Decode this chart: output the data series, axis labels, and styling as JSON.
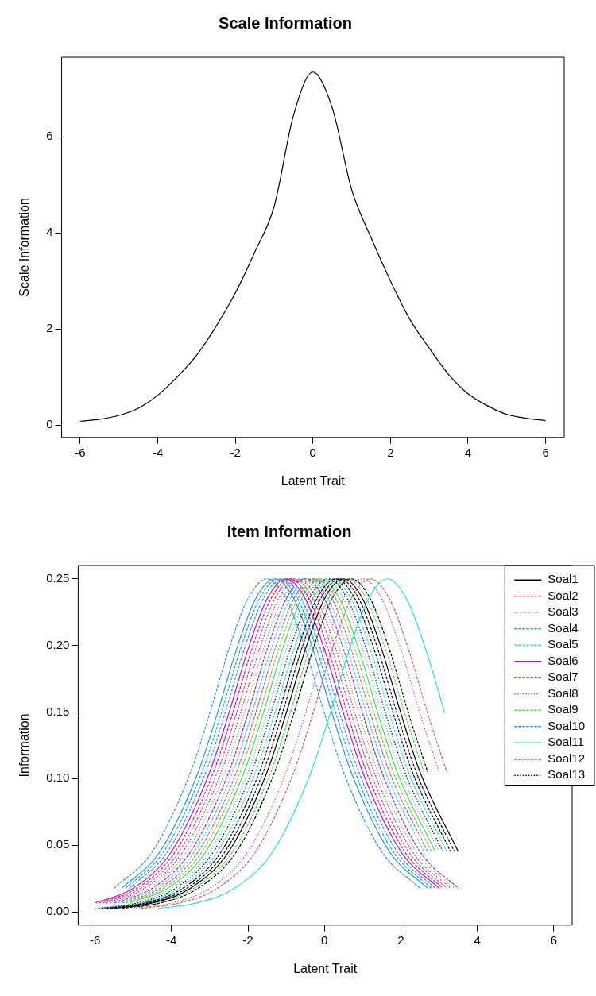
{
  "chart_data": [
    {
      "type": "line",
      "title": "Scale Information",
      "xlabel": "Latent Trait",
      "ylabel": "Scale Information",
      "xlim": [
        -6.48,
        6.48
      ],
      "ylim": [
        -0.26,
        7.66
      ],
      "xticks": [
        -6,
        -4,
        -2,
        0,
        2,
        4,
        6
      ],
      "yticks": [
        0,
        2,
        4,
        6
      ],
      "series": [
        {
          "color": "#000000",
          "line_style": "solid",
          "x": [
            -6,
            -5.5,
            -5,
            -4.5,
            -4,
            -3.5,
            -3,
            -2.5,
            -2,
            -1.5,
            -1,
            -0.5,
            0,
            0.5,
            1,
            1.5,
            2,
            2.5,
            3,
            3.5,
            4,
            4.5,
            5,
            5.5,
            6
          ],
          "values": [
            0.08,
            0.12,
            0.2,
            0.35,
            0.62,
            1.0,
            1.45,
            2.05,
            2.75,
            3.6,
            4.55,
            6.45,
            7.35,
            6.6,
            4.9,
            3.9,
            3.0,
            2.2,
            1.6,
            1.05,
            0.65,
            0.4,
            0.22,
            0.14,
            0.09
          ]
        }
      ]
    },
    {
      "type": "line",
      "title": "Item Information",
      "xlabel": "Latent Trait",
      "ylabel": "Information",
      "xlim": [
        -6.44,
        6.48
      ],
      "ylim": [
        -0.01,
        0.26
      ],
      "xticks": [
        -6,
        -4,
        -2,
        0,
        2,
        4,
        6
      ],
      "yticks": [
        {
          "value": 0,
          "label": "0.00"
        },
        {
          "value": 0.05,
          "label": "0.05"
        },
        {
          "value": 0.1,
          "label": "0.10"
        },
        {
          "value": 0.15,
          "label": "0.15"
        },
        {
          "value": 0.2,
          "label": "0.20"
        },
        {
          "value": 0.25,
          "label": "0.25"
        }
      ],
      "legend": "right",
      "series": [
        {
          "name": "Soal1",
          "color": "#000000",
          "line_style": "solid",
          "x": [
            -5.5,
            -4.5,
            -3.5,
            -2.5,
            -1.5,
            -1,
            -0.5,
            0,
            0.5,
            1,
            1.5,
            2,
            2.5,
            3.5
          ],
          "values": [
            0.0025,
            0.0066,
            0.0177,
            0.0452,
            0.105,
            0.149,
            0.197,
            0.235,
            0.25,
            0.235,
            0.197,
            0.149,
            0.105,
            0.0452
          ]
        },
        {
          "name": "Soal2",
          "color": "#df536b",
          "line_style": "dashed",
          "x": [
            -5.3,
            -4.3,
            -3.3,
            -2.3,
            -1.8,
            -1.3,
            -0.8,
            -0.3,
            0.2,
            0.7,
            1.2,
            1.7,
            2.7
          ],
          "values": [
            0.0066,
            0.0177,
            0.0452,
            0.105,
            0.149,
            0.197,
            0.235,
            0.25,
            0.235,
            0.197,
            0.149,
            0.105,
            0.0452
          ]
        },
        {
          "name": "Soal3",
          "color": "#61d04f",
          "line_style": "dotted",
          "x": [
            -5.6,
            -4.6,
            -3.6,
            -2.6,
            -2.1,
            -1.6,
            -1.1,
            -0.6,
            -0.1,
            0.4,
            0.9,
            1.4,
            2.4,
            3.4
          ],
          "values": [
            0.0066,
            0.0177,
            0.0452,
            0.105,
            0.149,
            0.197,
            0.235,
            0.25,
            0.235,
            0.197,
            0.149,
            0.105,
            0.0452,
            0.0177
          ]
        },
        {
          "name": "Soal4",
          "color": "#2297e6",
          "line_style": "dashed",
          "x": [
            -5.2,
            -4.2,
            -3.2,
            -2.7,
            -2.2,
            -1.7,
            -1.2,
            -0.7,
            -0.2,
            0.3,
            0.8,
            1.8,
            2.8
          ],
          "values": [
            0.0177,
            0.0452,
            0.105,
            0.149,
            0.197,
            0.235,
            0.25,
            0.235,
            0.197,
            0.149,
            0.105,
            0.0452,
            0.0177
          ]
        },
        {
          "name": "Soal5",
          "color": "#28e2e5",
          "line_style": "dashed",
          "x": [
            -5.4,
            -4.4,
            -3.4,
            -2.4,
            -1.9,
            -1.4,
            -0.9,
            -0.4,
            0.1,
            0.6,
            1.1,
            1.6,
            2.6
          ],
          "values": [
            0.0066,
            0.0177,
            0.0452,
            0.105,
            0.149,
            0.197,
            0.235,
            0.25,
            0.235,
            0.197,
            0.149,
            0.105,
            0.0452
          ]
        },
        {
          "name": "Soal6",
          "color": "#cd0bbc",
          "line_style": "solid",
          "x": [
            -6,
            -5,
            -4,
            -3,
            -2.5,
            -2,
            -1.5,
            -1,
            -0.5,
            0,
            0.5,
            1,
            2,
            3
          ],
          "values": [
            0.0066,
            0.0177,
            0.0452,
            0.105,
            0.149,
            0.197,
            0.235,
            0.25,
            0.235,
            0.197,
            0.149,
            0.105,
            0.0452,
            0.0177
          ]
        },
        {
          "name": "Soal7",
          "color": "#000000",
          "line_style": "dashed",
          "x": [
            -5.7,
            -4.7,
            -3.7,
            -2.7,
            -1.7,
            -1.2,
            -0.7,
            -0.2,
            0.3,
            0.8,
            1.3,
            1.8,
            2.3,
            3.3
          ],
          "values": [
            0.0025,
            0.0066,
            0.0177,
            0.0452,
            0.105,
            0.149,
            0.197,
            0.235,
            0.25,
            0.235,
            0.197,
            0.149,
            0.105,
            0.0452
          ]
        },
        {
          "name": "Soal8",
          "color": "#df536b",
          "line_style": "dotted",
          "x": [
            -5,
            -4,
            -3,
            -2,
            -1,
            -0.5,
            0,
            0.5,
            1,
            1.5,
            2,
            2.5,
            3
          ],
          "values": [
            0.0025,
            0.0066,
            0.0177,
            0.0452,
            0.105,
            0.149,
            0.197,
            0.235,
            0.25,
            0.235,
            0.197,
            0.149,
            0.105
          ]
        },
        {
          "name": "Soal9",
          "color": "#61d04f",
          "line_style": "dashed",
          "x": [
            -5.2,
            -4.2,
            -3.2,
            -2.2,
            -1.7,
            -1.2,
            -0.7,
            -0.2,
            0.3,
            0.8,
            1.3,
            1.8,
            2.8
          ],
          "values": [
            0.0066,
            0.0177,
            0.0452,
            0.105,
            0.149,
            0.197,
            0.235,
            0.25,
            0.235,
            0.197,
            0.149,
            0.105,
            0.0452
          ]
        },
        {
          "name": "Soal10",
          "color": "#2297e6",
          "line_style": "dashed",
          "x": [
            -5.1,
            -4.1,
            -3.1,
            -2.6,
            -2.1,
            -1.6,
            -1.1,
            -0.6,
            -0.1,
            0.4,
            0.9,
            1.9,
            2.9
          ],
          "values": [
            0.0177,
            0.0452,
            0.105,
            0.149,
            0.197,
            0.235,
            0.25,
            0.235,
            0.197,
            0.149,
            0.105,
            0.0452,
            0.0177
          ]
        },
        {
          "name": "Soal11",
          "color": "#28e2e5",
          "line_style": "solid",
          "x": [
            -4.35,
            -3.35,
            -2.35,
            -1.35,
            -0.35,
            0.15,
            0.65,
            1.15,
            1.65,
            2.15,
            2.65,
            3.15
          ],
          "values": [
            0.0025,
            0.0066,
            0.0177,
            0.0452,
            0.105,
            0.149,
            0.197,
            0.235,
            0.25,
            0.235,
            0.197,
            0.149
          ]
        },
        {
          "name": "Soal12",
          "color": "#cd0bbc",
          "line_style": "dashed",
          "x": [
            -5.9,
            -4.9,
            -3.9,
            -2.9,
            -2.4,
            -1.9,
            -1.4,
            -0.9,
            -0.4,
            0.1,
            0.6,
            1.1,
            2.1,
            3.1
          ],
          "values": [
            0.0066,
            0.0177,
            0.0452,
            0.105,
            0.149,
            0.197,
            0.235,
            0.25,
            0.235,
            0.197,
            0.149,
            0.105,
            0.0452,
            0.0177
          ]
        },
        {
          "name": "Soal13",
          "color": "#000000",
          "line_style": "dotted",
          "x": [
            -5.9,
            -4.9,
            -3.9,
            -2.9,
            -1.9,
            -1.4,
            -0.9,
            -0.4,
            0.1,
            0.6,
            1.1,
            1.6,
            2.1,
            3.1
          ],
          "values": [
            0.0025,
            0.0066,
            0.0177,
            0.0452,
            0.105,
            0.149,
            0.197,
            0.235,
            0.25,
            0.235,
            0.197,
            0.149,
            0.105,
            0.0452
          ]
        },
        {
          "color": "#df536b",
          "line_style": "dashed",
          "x": [
            -5.8,
            -4.8,
            -3.8,
            -2.8,
            -2.3,
            -1.8,
            -1.3,
            -0.8,
            -0.3,
            0.2,
            0.7,
            1.2,
            2.2,
            3.2
          ],
          "values": [
            0.0066,
            0.0177,
            0.0452,
            0.105,
            0.149,
            0.197,
            0.235,
            0.25,
            0.235,
            0.197,
            0.149,
            0.105,
            0.0452,
            0.0177
          ]
        },
        {
          "color": "#61d04f",
          "line_style": "dashed",
          "x": [
            -4.4,
            -3.4,
            -2.4,
            -1.4,
            -0.9,
            -0.4,
            0.1,
            0.6,
            1.1,
            1.6,
            2.1,
            2.6
          ],
          "values": [
            0.0066,
            0.0177,
            0.0452,
            0.105,
            0.149,
            0.197,
            0.235,
            0.25,
            0.235,
            0.197,
            0.149,
            0.105
          ]
        },
        {
          "color": "#2297e6",
          "line_style": "solid",
          "x": [
            -5.3,
            -4.3,
            -3.3,
            -2.8,
            -2.3,
            -1.8,
            -1.3,
            -0.8,
            -0.3,
            0.2,
            0.7,
            1.7,
            2.7
          ],
          "values": [
            0.0177,
            0.0452,
            0.105,
            0.149,
            0.197,
            0.235,
            0.25,
            0.235,
            0.197,
            0.149,
            0.105,
            0.0452,
            0.0177
          ]
        },
        {
          "color": "#28e2e5",
          "line_style": "dashed",
          "x": [
            -5.8,
            -4.8,
            -3.8,
            -2.8,
            -1.8,
            -1.3,
            -0.8,
            -0.3,
            0.2,
            0.7,
            1.2,
            1.7,
            2.2,
            3.2
          ],
          "values": [
            0.0025,
            0.0066,
            0.0177,
            0.0452,
            0.105,
            0.149,
            0.197,
            0.235,
            0.25,
            0.235,
            0.197,
            0.149,
            0.105,
            0.0452
          ]
        },
        {
          "color": "#cd0bbc",
          "line_style": "dotted",
          "x": [
            -5.7,
            -4.7,
            -3.7,
            -2.7,
            -2.2,
            -1.7,
            -1.2,
            -0.7,
            -0.2,
            0.3,
            0.8,
            1.3,
            2.3,
            3.3
          ],
          "values": [
            0.0066,
            0.0177,
            0.0452,
            0.105,
            0.149,
            0.197,
            0.235,
            0.25,
            0.235,
            0.197,
            0.149,
            0.105,
            0.0452,
            0.0177
          ]
        },
        {
          "color": "#000000",
          "line_style": "dashed",
          "x": [
            -5.3,
            -4.3,
            -3.3,
            -2.3,
            -1.3,
            -0.8,
            -0.3,
            0.2,
            0.7,
            1.2,
            1.7,
            2.2,
            2.7
          ],
          "values": [
            0.0025,
            0.0066,
            0.0177,
            0.0452,
            0.105,
            0.149,
            0.197,
            0.235,
            0.25,
            0.235,
            0.197,
            0.149,
            0.105
          ]
        },
        {
          "color": "#df536b",
          "line_style": "dashed",
          "x": [
            -4.8,
            -3.8,
            -2.8,
            -1.8,
            -0.8,
            -0.3,
            0.2,
            0.7,
            1.2,
            1.7,
            2.2,
            2.7,
            3.2
          ],
          "values": [
            0.0025,
            0.0066,
            0.0177,
            0.0452,
            0.105,
            0.149,
            0.197,
            0.235,
            0.25,
            0.235,
            0.197,
            0.149,
            0.105
          ]
        },
        {
          "color": "#61d04f",
          "line_style": "solid",
          "x": [
            -5.1,
            -4.1,
            -3.1,
            -2.1,
            -1.6,
            -1.1,
            -0.6,
            -0.1,
            0.4,
            0.9,
            1.4,
            1.9,
            2.9
          ],
          "values": [
            0.0066,
            0.0177,
            0.0452,
            0.105,
            0.149,
            0.197,
            0.235,
            0.25,
            0.235,
            0.197,
            0.149,
            0.105,
            0.0452
          ]
        },
        {
          "color": "#2297e6",
          "line_style": "dashed",
          "x": [
            -5.5,
            -4.5,
            -3.5,
            -3,
            -2.5,
            -2,
            -1.5,
            -1,
            -0.5,
            0,
            0.5,
            1.5,
            2.5
          ],
          "values": [
            0.0177,
            0.0452,
            0.105,
            0.149,
            0.197,
            0.235,
            0.25,
            0.235,
            0.197,
            0.149,
            0.105,
            0.0452,
            0.0177
          ]
        },
        {
          "color": "#28e2e5",
          "line_style": "dotted",
          "x": [
            -6,
            -5,
            -4,
            -3,
            -2,
            -1.5,
            -1,
            -0.5,
            0,
            0.5,
            1,
            1.5,
            2,
            3
          ],
          "values": [
            0.0025,
            0.0066,
            0.0177,
            0.0452,
            0.105,
            0.149,
            0.197,
            0.235,
            0.25,
            0.235,
            0.197,
            0.149,
            0.105,
            0.0452
          ]
        },
        {
          "color": "#cd0bbc",
          "line_style": "dashed",
          "x": [
            -5.5,
            -4.5,
            -3.5,
            -2.5,
            -2,
            -1.5,
            -1,
            -0.5,
            0,
            0.5,
            1,
            1.5,
            2.5,
            3.5
          ],
          "values": [
            0.0066,
            0.0177,
            0.0452,
            0.105,
            0.149,
            0.197,
            0.235,
            0.25,
            0.235,
            0.197,
            0.149,
            0.105,
            0.0452,
            0.0177
          ]
        },
        {
          "color": "#000000",
          "line_style": "dashed",
          "x": [
            -5.6,
            -4.6,
            -3.6,
            -2.6,
            -1.6,
            -1.1,
            -0.6,
            -0.1,
            0.4,
            0.9,
            1.4,
            1.9,
            2.4,
            3.4
          ],
          "values": [
            0.0025,
            0.0066,
            0.0177,
            0.0452,
            0.105,
            0.149,
            0.197,
            0.235,
            0.25,
            0.235,
            0.197,
            0.149,
            0.105,
            0.0452
          ]
        }
      ]
    }
  ]
}
